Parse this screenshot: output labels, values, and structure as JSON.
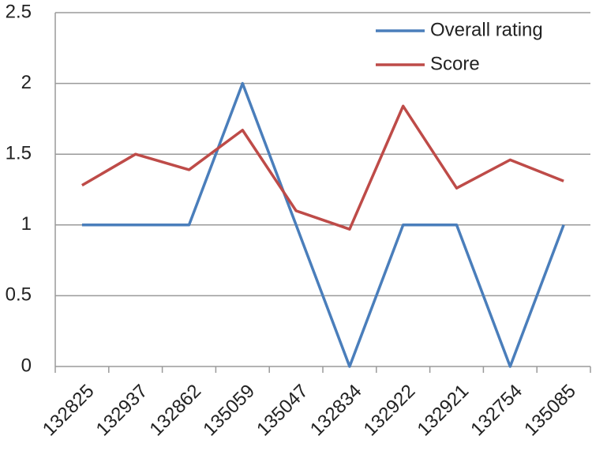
{
  "chart_data": {
    "type": "line",
    "categories": [
      "132825",
      "132937",
      "132862",
      "135059",
      "135047",
      "132834",
      "132922",
      "132921",
      "132754",
      "135085"
    ],
    "series": [
      {
        "name": "Overall rating",
        "color": "#4a7ebb",
        "values": [
          1,
          1,
          1,
          2,
          1,
          0,
          1,
          1,
          0,
          1
        ]
      },
      {
        "name": "Score",
        "color": "#be4b48",
        "values": [
          1.28,
          1.5,
          1.39,
          1.67,
          1.1,
          0.97,
          1.84,
          1.26,
          1.46,
          1.31
        ]
      }
    ],
    "ylim": [
      0,
      2.5
    ],
    "yticks": [
      0,
      0.5,
      1,
      1.5,
      2,
      2.5
    ],
    "grid": true,
    "legend": "top-right"
  }
}
